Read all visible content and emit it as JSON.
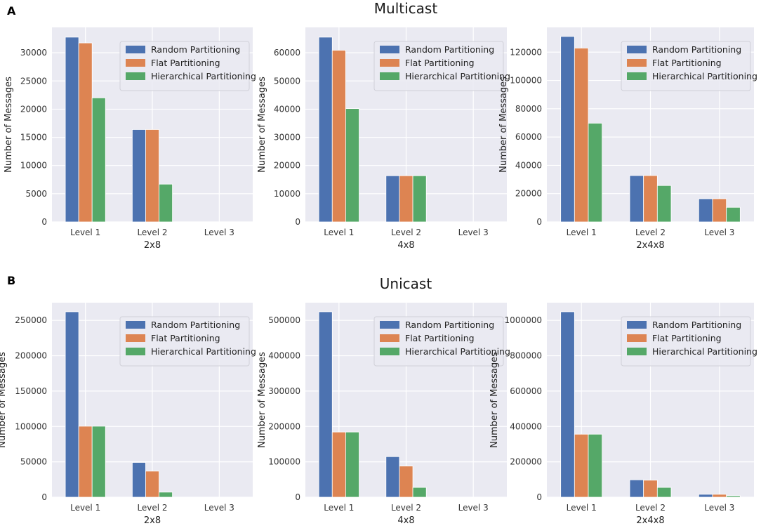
{
  "figure": {
    "sections": [
      {
        "letter": "A",
        "title": "Multicast"
      },
      {
        "letter": "B",
        "title": "Unicast"
      }
    ]
  },
  "colors": {
    "random": "#4c72b0",
    "flat": "#dd8452",
    "hierarchical": "#55a868",
    "plot_bg": "#eaeaf2",
    "grid": "#ffffff"
  },
  "chart_data": [
    {
      "type": "bar",
      "section": "Multicast",
      "title": "",
      "xlabel": "2x8",
      "ylabel": "Number of Messages",
      "categories": [
        "Level 1",
        "Level 2",
        "Level 3"
      ],
      "ylim": [
        0,
        34500
      ],
      "yticks": [
        0,
        5000,
        10000,
        15000,
        20000,
        25000,
        30000
      ],
      "legend": "top-right",
      "series": [
        {
          "name": "Random Partitioning",
          "values": [
            32768,
            16384,
            0
          ]
        },
        {
          "name": "Flat Partitioning",
          "values": [
            31744,
            16384,
            0
          ]
        },
        {
          "name": "Hierarchical Partitioning",
          "values": [
            22000,
            6700,
            0
          ]
        }
      ]
    },
    {
      "type": "bar",
      "section": "Multicast",
      "title": "",
      "xlabel": "4x8",
      "ylabel": "Number of Messages",
      "categories": [
        "Level 1",
        "Level 2",
        "Level 3"
      ],
      "ylim": [
        0,
        69000
      ],
      "yticks": [
        0,
        10000,
        20000,
        30000,
        40000,
        50000,
        60000
      ],
      "legend": "top-right",
      "series": [
        {
          "name": "Random Partitioning",
          "values": [
            65536,
            16384,
            0
          ]
        },
        {
          "name": "Flat Partitioning",
          "values": [
            60900,
            16384,
            0
          ]
        },
        {
          "name": "Hierarchical Partitioning",
          "values": [
            40200,
            16384,
            0
          ]
        }
      ]
    },
    {
      "type": "bar",
      "section": "Multicast",
      "title": "",
      "xlabel": "2x4x8",
      "ylabel": "Number of Messages",
      "categories": [
        "Level 1",
        "Level 2",
        "Level 3"
      ],
      "ylim": [
        0,
        137500
      ],
      "yticks": [
        0,
        20000,
        40000,
        60000,
        80000,
        100000,
        120000
      ],
      "legend": "top-right",
      "series": [
        {
          "name": "Random Partitioning",
          "values": [
            131072,
            32768,
            16384
          ]
        },
        {
          "name": "Flat Partitioning",
          "values": [
            122880,
            32768,
            16384
          ]
        },
        {
          "name": "Hierarchical Partitioning",
          "values": [
            69800,
            25700,
            10300
          ]
        }
      ]
    },
    {
      "type": "bar",
      "section": "Unicast",
      "title": "",
      "xlabel": "2x8",
      "ylabel": "Number of Messages",
      "categories": [
        "Level 1",
        "Level 2",
        "Level 3"
      ],
      "ylim": [
        0,
        275000
      ],
      "yticks": [
        0,
        50000,
        100000,
        150000,
        200000,
        250000
      ],
      "legend": "top-right",
      "series": [
        {
          "name": "Random Partitioning",
          "values": [
            262144,
            49152,
            0
          ]
        },
        {
          "name": "Flat Partitioning",
          "values": [
            100352,
            36864,
            0
          ]
        },
        {
          "name": "Hierarchical Partitioning",
          "values": [
            100352,
            7168,
            0
          ]
        }
      ]
    },
    {
      "type": "bar",
      "section": "Unicast",
      "title": "",
      "xlabel": "4x8",
      "ylabel": "Number of Messages",
      "categories": [
        "Level 1",
        "Level 2",
        "Level 3"
      ],
      "ylim": [
        0,
        550000
      ],
      "yticks": [
        0,
        100000,
        200000,
        300000,
        400000,
        500000
      ],
      "legend": "top-right",
      "series": [
        {
          "name": "Random Partitioning",
          "values": [
            524288,
            114688,
            0
          ]
        },
        {
          "name": "Flat Partitioning",
          "values": [
            184320,
            88064,
            0
          ]
        },
        {
          "name": "Hierarchical Partitioning",
          "values": [
            184320,
            27648,
            0
          ]
        }
      ]
    },
    {
      "type": "bar",
      "section": "Unicast",
      "title": "",
      "xlabel": "2x4x8",
      "ylabel": "Number of Messages",
      "categories": [
        "Level 1",
        "Level 2",
        "Level 3"
      ],
      "ylim": [
        0,
        1100000
      ],
      "yticks": [
        0,
        200000,
        400000,
        600000,
        800000,
        1000000
      ],
      "legend": "top-right",
      "series": [
        {
          "name": "Random Partitioning",
          "values": [
            1048576,
            98304,
            16384
          ]
        },
        {
          "name": "Flat Partitioning",
          "values": [
            356352,
            96256,
            16384
          ]
        },
        {
          "name": "Hierarchical Partitioning",
          "values": [
            356352,
            55296,
            8192
          ]
        }
      ]
    }
  ]
}
